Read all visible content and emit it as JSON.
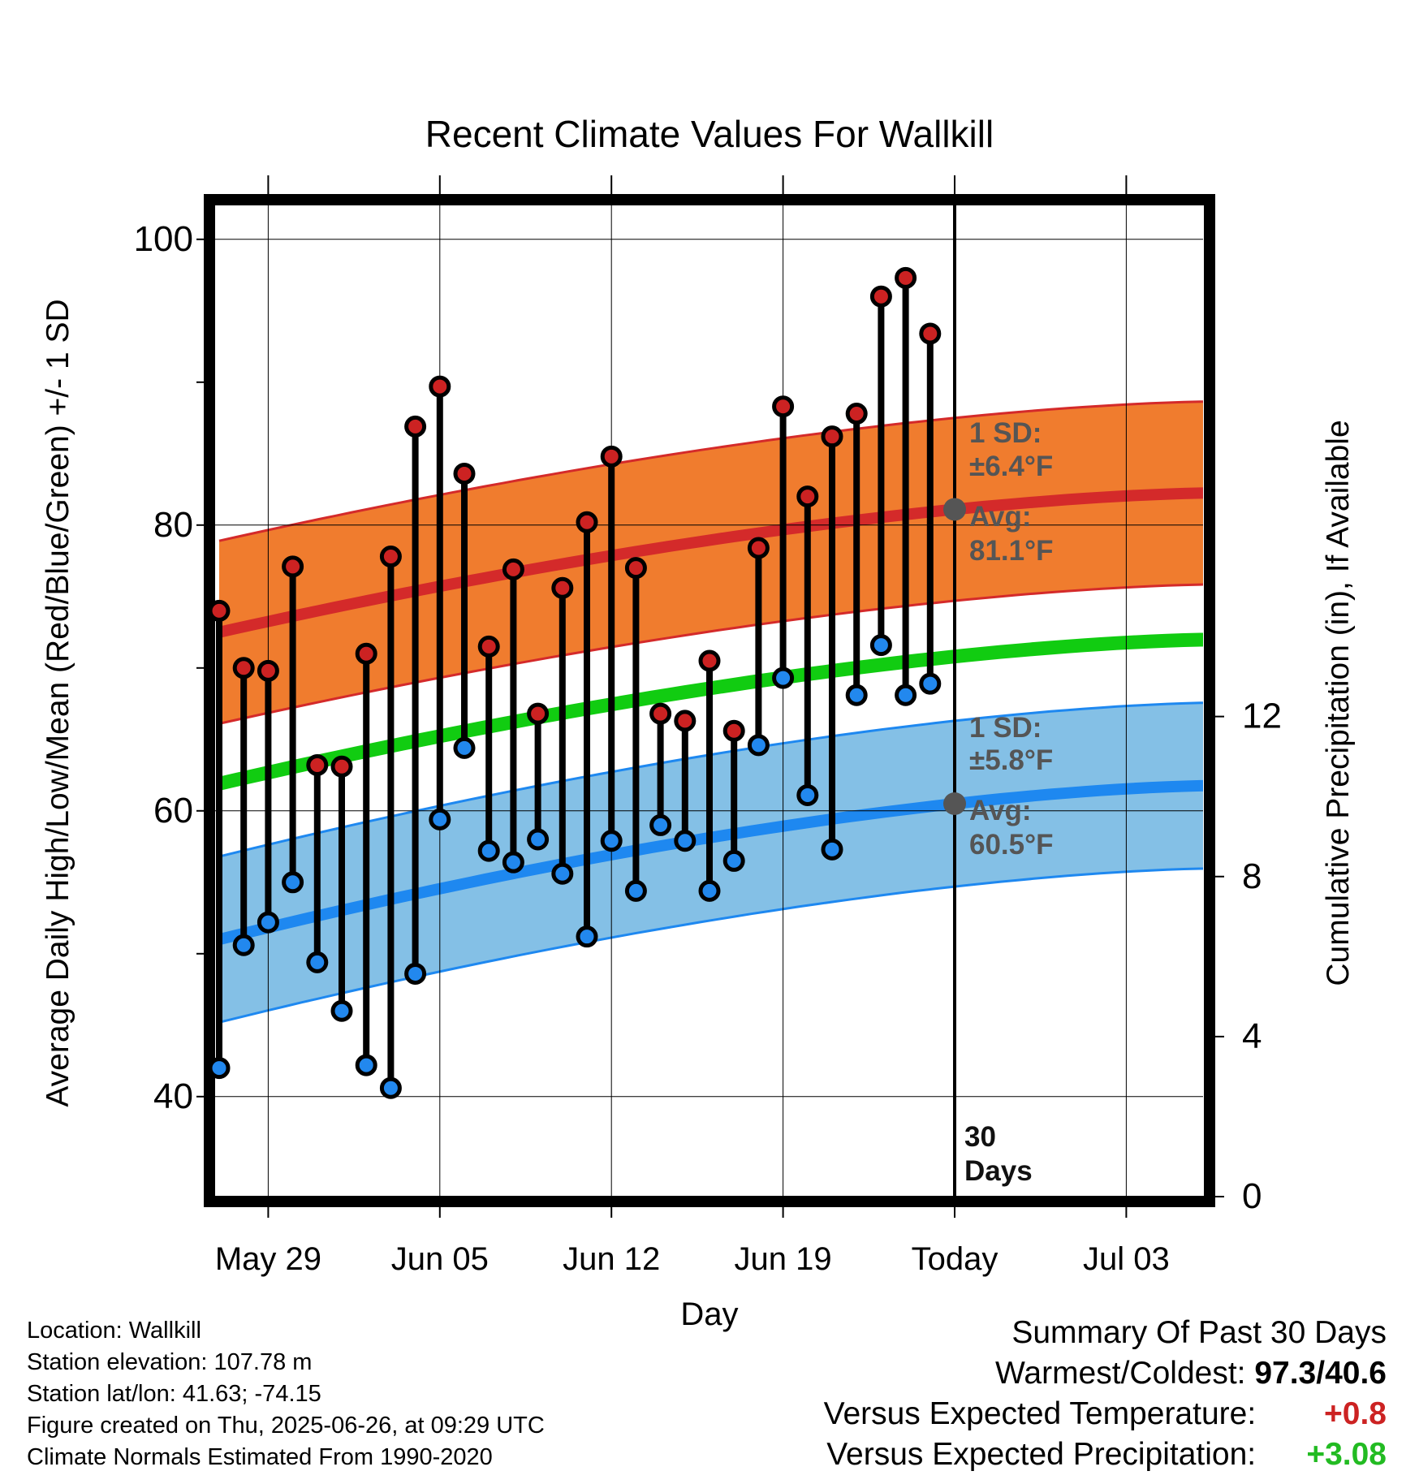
{
  "chart_data": {
    "type": "line",
    "title": "Recent Climate Values For Wallkill",
    "xlabel": "Day",
    "ylabel_left": "Average Daily High/Low/Mean (Red/Blue/Green) +/- 1 SD",
    "ylabel_right": "Cumulative Precipitation (in), If Available",
    "ylim_left": [
      33,
      103
    ],
    "ylim_right": [
      0,
      25
    ],
    "yticks_left": [
      "40",
      "60",
      "80",
      "100"
    ],
    "yticks_right": [
      "0",
      "4",
      "8",
      "12"
    ],
    "x_tick_labels": [
      "May 29",
      "Jun 05",
      "Jun 12",
      "Jun 19",
      "Today",
      "Jul 03"
    ],
    "days": [
      "May 27",
      "May 28",
      "May 29",
      "May 30",
      "May 31",
      "Jun 01",
      "Jun 02",
      "Jun 03",
      "Jun 04",
      "Jun 05",
      "Jun 06",
      "Jun 07",
      "Jun 08",
      "Jun 09",
      "Jun 10",
      "Jun 11",
      "Jun 12",
      "Jun 13",
      "Jun 14",
      "Jun 15",
      "Jun 16",
      "Jun 17",
      "Jun 18",
      "Jun 19",
      "Jun 20",
      "Jun 21",
      "Jun 22",
      "Jun 23",
      "Jun 24",
      "Jun 25"
    ],
    "series": [
      {
        "name": "High",
        "color": "#cc2222",
        "values": [
          74.0,
          70.0,
          69.8,
          77.1,
          63.2,
          63.1,
          71.0,
          77.8,
          86.9,
          89.7,
          83.6,
          71.5,
          76.9,
          66.8,
          75.6,
          80.2,
          84.8,
          77.0,
          66.8,
          66.3,
          70.5,
          65.6,
          78.4,
          88.3,
          82.0,
          86.2,
          87.8,
          96.0,
          97.3,
          93.4
        ]
      },
      {
        "name": "Low",
        "color": "#2288ee",
        "values": [
          42.0,
          50.6,
          52.2,
          55.0,
          49.4,
          46.0,
          42.2,
          40.6,
          48.6,
          59.4,
          64.4,
          57.2,
          56.4,
          58.0,
          55.6,
          51.2,
          57.9,
          54.4,
          59.0,
          57.9,
          54.4,
          56.5,
          64.6,
          69.3,
          61.1,
          57.3,
          68.1,
          71.6,
          68.1,
          68.9
        ]
      }
    ],
    "normal_high": {
      "start": 72.5,
      "today": 81.1,
      "end": 82.9,
      "sd": 6.4
    },
    "normal_low": {
      "start": 51.0,
      "today": 60.5,
      "end": 62.3,
      "sd": 5.8
    },
    "normal_mean": {
      "start": 61.9,
      "today": 70.8,
      "end": 72.6
    },
    "precip_cumulative": [
      0,
      0,
      0,
      0,
      0,
      0,
      0,
      0,
      0,
      0,
      0,
      0,
      0,
      0,
      0,
      0,
      0,
      0,
      0,
      0,
      0,
      0,
      0,
      0,
      0,
      0,
      0,
      0,
      0,
      0
    ],
    "annotations": {
      "high_sd_line1": "1 SD:",
      "high_sd_line2": "±6.4°F",
      "high_avg_line1": "Avg:",
      "high_avg_line2": "81.1°F",
      "low_sd_line1": "1 SD:",
      "low_sd_line2": "±5.8°F",
      "low_avg_line1": "Avg:",
      "low_avg_line2": "60.5°F",
      "days_line1": "30",
      "days_line2": "Days"
    },
    "colors": {
      "high_band": "#f07c2e",
      "high_line": "#d42a2a",
      "low_band": "#84c0e6",
      "low_line": "#1e88f0",
      "mean_line": "#11cc11",
      "precip": "#4a9aa4",
      "annotation": "#555555"
    }
  },
  "info": {
    "location": "Location: Wallkill",
    "elevation": "Station elevation: 107.78 m",
    "latlon": "Station lat/lon: 41.63; -74.15",
    "created": "Figure created on Thu, 2025-06-26, at 09:29 UTC",
    "normals": "Climate Normals Estimated From 1990-2020"
  },
  "summary": {
    "heading": "Summary Of Past 30 Days",
    "warmest_label": "Warmest/Coldest:",
    "warmest_value": "97.3/40.6",
    "temp_label": "Versus Expected Temperature:",
    "temp_value": "+0.8",
    "temp_color": "#cc2222",
    "precip_label": "Versus Expected Precipitation:",
    "precip_value": "+3.08",
    "precip_color": "#22bb22"
  }
}
